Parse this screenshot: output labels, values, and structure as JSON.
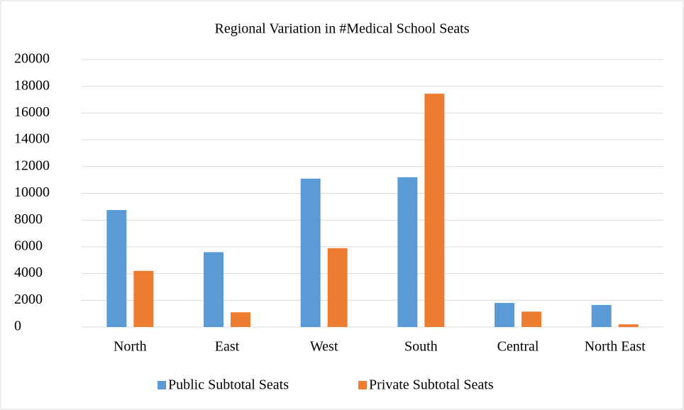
{
  "chart_data": {
    "type": "bar",
    "title": "Regional Variation in #Medical School Seats",
    "categories": [
      "North",
      "East",
      "West",
      "South",
      "Central",
      "North East"
    ],
    "series": [
      {
        "name": "Public Subtotal Seats",
        "color": "#5b9bd5",
        "values": [
          8750,
          5600,
          11100,
          11200,
          1800,
          1650
        ]
      },
      {
        "name": "Private Subtotal Seats",
        "color": "#ed7d31",
        "values": [
          4200,
          1100,
          5900,
          17450,
          1150,
          200
        ]
      }
    ],
    "ylim": [
      0,
      20000
    ],
    "yticks": [
      0,
      2000,
      4000,
      6000,
      8000,
      10000,
      12000,
      14000,
      16000,
      18000,
      20000
    ],
    "grid": true,
    "legend": "bottom"
  }
}
